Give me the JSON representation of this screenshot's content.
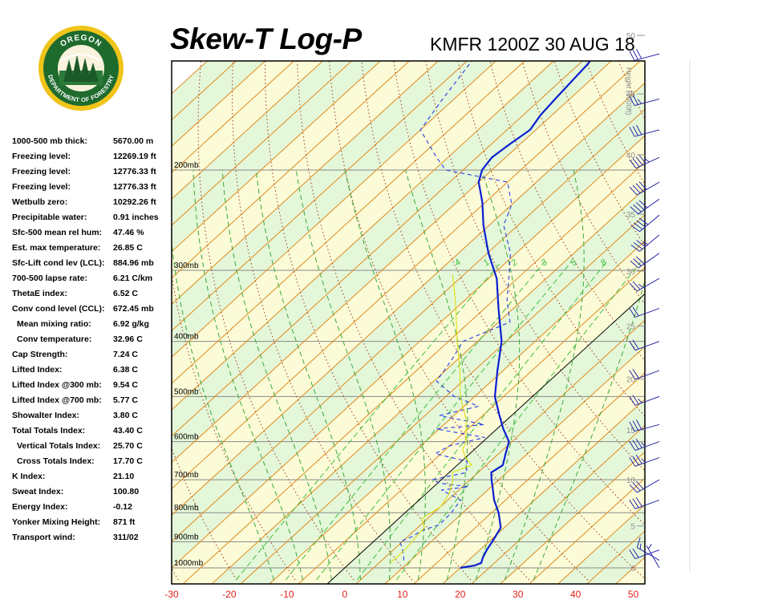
{
  "header": {
    "title": "Skew-T Log-P",
    "station": "KMFR 1200Z 30 AUG 18"
  },
  "logo": {
    "top_text": "OREGON",
    "bottom_text": "DEPARTMENT OF FORESTRY"
  },
  "indices": [
    {
      "label": "1000-500 mb thick:",
      "value": "5670.00 m"
    },
    {
      "label": "Freezing level:",
      "value": "12269.19 ft"
    },
    {
      "label": "Freezing level:",
      "value": "12776.33 ft"
    },
    {
      "label": "Freezing level:",
      "value": "12776.33 ft"
    },
    {
      "label": "Wetbulb zero:",
      "value": "10292.26 ft"
    },
    {
      "label": "Precipitable water:",
      "value": "0.91 inches"
    },
    {
      "label": "Sfc-500 mean rel hum:",
      "value": "47.46 %"
    },
    {
      "label": "Est. max temperature:",
      "value": "26.85 C"
    },
    {
      "label": "Sfc-Lift cond lev (LCL):",
      "value": "884.96 mb"
    },
    {
      "label": "700-500 lapse rate:",
      "value": "6.21 C/km"
    },
    {
      "label": "ThetaE index:",
      "value": "6.52 C"
    },
    {
      "label": "Conv cond level (CCL):",
      "value": "672.45 mb"
    },
    {
      "label": "Mean mixing ratio:",
      "value": "6.92 g/kg",
      "indent": true
    },
    {
      "label": "Conv temperature:",
      "value": "32.96 C",
      "indent": true
    },
    {
      "label": "Cap Strength:",
      "value": "7.24 C"
    },
    {
      "label": "Lifted Index:",
      "value": "6.38 C"
    },
    {
      "label": "Lifted Index @300 mb:",
      "value": "9.54 C"
    },
    {
      "label": "Lifted Index @700 mb:",
      "value": "5.77 C"
    },
    {
      "label": "Showalter Index:",
      "value": "3.80 C"
    },
    {
      "label": "Total Totals Index:",
      "value": "43.40 C"
    },
    {
      "label": "Vertical Totals Index:",
      "value": "25.70 C",
      "indent": true
    },
    {
      "label": "Cross Totals Index:",
      "value": "17.70 C",
      "indent": true
    },
    {
      "label": "K Index:",
      "value": "21.10"
    },
    {
      "label": "Sweat Index:",
      "value": "100.80"
    },
    {
      "label": "Energy Index:",
      "value": "-0.12"
    },
    {
      "label": "Yonker Mixing Height:",
      "value": "871 ft"
    },
    {
      "label": "Transport wind:",
      "value": "311/02"
    }
  ],
  "chart_data": {
    "type": "line",
    "title": "Skew-T Log-P",
    "subtitle": "KMFR 1200Z 30 AUG 18",
    "xlabel": "",
    "ylabel": "",
    "xlim": [
      -30,
      52
    ],
    "x_ticks": [
      -30,
      -20,
      -10,
      0,
      10,
      20,
      30,
      40,
      50
    ],
    "pressure_levels": [
      1000,
      900,
      800,
      700,
      600,
      500,
      400,
      300,
      200
    ],
    "pressure_labels": [
      "1000mb",
      "900mb",
      "800mb",
      "700mb",
      "600mb",
      "500mb",
      "400mb",
      "300mb",
      "200mb"
    ],
    "height_axis_label": "Height (1000ft)",
    "height_ticks": [
      {
        "label": "0",
        "p": 1000
      },
      {
        "label": "5",
        "p": 844
      },
      {
        "label": "10",
        "p": 700
      },
      {
        "label": "15",
        "p": 572
      },
      {
        "label": "20",
        "p": 466
      },
      {
        "label": "25",
        "p": 376
      },
      {
        "label": "30",
        "p": 301
      },
      {
        "label": "35",
        "p": 239
      },
      {
        "label": "40",
        "p": 188
      },
      {
        "label": "45",
        "p": 147
      },
      {
        "label": "50",
        "p": 116
      }
    ],
    "mixing_ratio_labels": [
      "4",
      "1",
      "2",
      "3",
      "5",
      "8"
    ],
    "background_colors": {
      "band_green": "#e4f7d9",
      "band_yellow": "#fbfbd7"
    },
    "line_colors": {
      "isotherm": "#e08a1e",
      "dry_adiabat": "#a33a1c",
      "moist_adiabat": "#3aa83a",
      "mixing_ratio": "#40c040",
      "temperature": "#0a1fd0",
      "dewpoint": "#2a3ae6",
      "parcel": "#dddd00",
      "zero_isotherm": "#000000",
      "wind_barb": "#2a2aaa"
    },
    "series": [
      {
        "name": "Temperature",
        "points": [
          [
            1000,
            20.0
          ],
          [
            990,
            22.1
          ],
          [
            980,
            22.7
          ],
          [
            960,
            22.0
          ],
          [
            930,
            21.2
          ],
          [
            900,
            20.6
          ],
          [
            850,
            19.4
          ],
          [
            800,
            16.2
          ],
          [
            760,
            13.0
          ],
          [
            720,
            10.2
          ],
          [
            700,
            8.7
          ],
          [
            680,
            7.3
          ],
          [
            660,
            7.9
          ],
          [
            630,
            6.2
          ],
          [
            600,
            4.5
          ],
          [
            570,
            1.1
          ],
          [
            540,
            -2.1
          ],
          [
            500,
            -6.5
          ],
          [
            450,
            -11.0
          ],
          [
            400,
            -15.8
          ],
          [
            350,
            -22.6
          ],
          [
            310,
            -28.6
          ],
          [
            280,
            -34.8
          ],
          [
            250,
            -41.0
          ],
          [
            228,
            -45.5
          ],
          [
            210,
            -50.0
          ],
          [
            200,
            -51.7
          ],
          [
            190,
            -52.4
          ],
          [
            180,
            -51.8
          ],
          [
            170,
            -51.0
          ],
          [
            160,
            -52.0
          ],
          [
            150,
            -52.5
          ],
          [
            140,
            -53.0
          ],
          [
            130,
            -53.5
          ],
          [
            120,
            -55.0
          ]
        ]
      },
      {
        "name": "Dewpoint",
        "points": [
          [
            970,
            8.8
          ],
          [
            950,
            7.8
          ],
          [
            920,
            6.0
          ],
          [
            900,
            4.6
          ],
          [
            880,
            5.8
          ],
          [
            860,
            6.2
          ],
          [
            840,
            8.2
          ],
          [
            800,
            8.0
          ],
          [
            760,
            7.2
          ],
          [
            730,
            2.0
          ],
          [
            720,
            6.0
          ],
          [
            710,
            0.5
          ],
          [
            700,
            -1.5
          ],
          [
            680,
            3.0
          ],
          [
            650,
            1.0
          ],
          [
            630,
            -6.0
          ],
          [
            610,
            -5.0
          ],
          [
            590,
            -0.5
          ],
          [
            570,
            -10.5
          ],
          [
            560,
            -3.0
          ],
          [
            540,
            -12.5
          ],
          [
            520,
            -7.5
          ],
          [
            500,
            -13.5
          ],
          [
            470,
            -19.5
          ],
          [
            430,
            -21.0
          ],
          [
            400,
            -22.5
          ],
          [
            370,
            -18.0
          ],
          [
            340,
            -22.5
          ],
          [
            310,
            -26.5
          ],
          [
            280,
            -31.0
          ],
          [
            250,
            -37.5
          ],
          [
            230,
            -40.0
          ],
          [
            210,
            -45.0
          ],
          [
            200,
            -58.0
          ],
          [
            190,
            -62.0
          ],
          [
            170,
            -70.0
          ],
          [
            150,
            -72.0
          ],
          [
            130,
            -74.0
          ],
          [
            110,
            -76.0
          ]
        ]
      },
      {
        "name": "Parcel",
        "points": [
          [
            980,
            7.0
          ],
          [
            930,
            7.0
          ],
          [
            885,
            6.5
          ],
          [
            850,
            6.2
          ],
          [
            820,
            4.0
          ],
          [
            780,
            5.0
          ],
          [
            740,
            4.0
          ],
          [
            700,
            2.0
          ],
          [
            680,
            0.5
          ],
          [
            660,
            2.5
          ],
          [
            640,
            0.0
          ],
          [
            620,
            -2.0
          ],
          [
            600,
            -3.0
          ],
          [
            550,
            -7.0
          ],
          [
            500,
            -12.5
          ],
          [
            450,
            -17.5
          ],
          [
            400,
            -23.5
          ],
          [
            350,
            -30.0
          ],
          [
            320,
            -34.5
          ],
          [
            305,
            -37.0
          ]
        ]
      }
    ],
    "wind_barbs": [
      {
        "p": 1000,
        "dir": 330,
        "spd": 5
      },
      {
        "p": 970,
        "dir": 300,
        "spd": 15
      },
      {
        "p": 930,
        "dir": 250,
        "spd": 20
      },
      {
        "p": 760,
        "dir": 250,
        "spd": 30
      },
      {
        "p": 700,
        "dir": 240,
        "spd": 30
      },
      {
        "p": 640,
        "dir": 250,
        "spd": 35
      },
      {
        "p": 600,
        "dir": 250,
        "spd": 35
      },
      {
        "p": 560,
        "dir": 255,
        "spd": 30
      },
      {
        "p": 500,
        "dir": 250,
        "spd": 25
      },
      {
        "p": 450,
        "dir": 250,
        "spd": 20
      },
      {
        "p": 400,
        "dir": 250,
        "spd": 20
      },
      {
        "p": 350,
        "dir": 250,
        "spd": 20
      },
      {
        "p": 310,
        "dir": 240,
        "spd": 25
      },
      {
        "p": 280,
        "dir": 235,
        "spd": 30
      },
      {
        "p": 260,
        "dir": 230,
        "spd": 35
      },
      {
        "p": 240,
        "dir": 230,
        "spd": 40
      },
      {
        "p": 225,
        "dir": 235,
        "spd": 40
      },
      {
        "p": 210,
        "dir": 240,
        "spd": 40
      },
      {
        "p": 190,
        "dir": 245,
        "spd": 45
      },
      {
        "p": 170,
        "dir": 255,
        "spd": 30
      },
      {
        "p": 150,
        "dir": 255,
        "spd": 25
      },
      {
        "p": 125,
        "dir": 255,
        "spd": 30
      }
    ]
  }
}
